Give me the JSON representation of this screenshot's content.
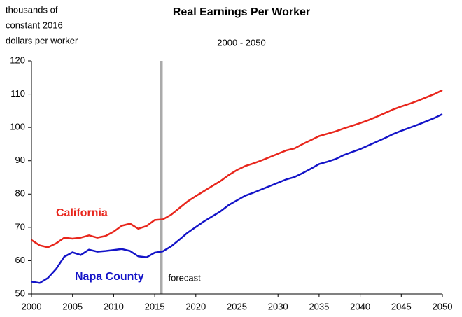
{
  "chart_data": {
    "type": "line",
    "title": "Real Earnings Per Worker",
    "subtitle": "2000 - 2050",
    "ylabel": [
      "thousands of",
      "constant 2016",
      "dollars per worker"
    ],
    "x": [
      2000,
      2001,
      2002,
      2003,
      2004,
      2005,
      2006,
      2007,
      2008,
      2009,
      2010,
      2011,
      2012,
      2013,
      2014,
      2015,
      2016,
      2017,
      2018,
      2019,
      2020,
      2021,
      2022,
      2023,
      2024,
      2025,
      2026,
      2027,
      2028,
      2029,
      2030,
      2031,
      2032,
      2033,
      2034,
      2035,
      2036,
      2037,
      2038,
      2039,
      2040,
      2041,
      2042,
      2043,
      2044,
      2045,
      2046,
      2047,
      2048,
      2049,
      2050
    ],
    "series": [
      {
        "name": "California",
        "color": "#e8261c",
        "values": [
          66.2,
          64.6,
          64.0,
          65.2,
          66.9,
          66.6,
          66.9,
          67.6,
          66.9,
          67.4,
          68.7,
          70.5,
          71.1,
          69.6,
          70.4,
          72.2,
          72.4,
          73.8,
          75.8,
          77.8,
          79.4,
          80.9,
          82.4,
          83.9,
          85.7,
          87.2,
          88.4,
          89.2,
          90.1,
          91.1,
          92.1,
          93.1,
          93.7,
          95.0,
          96.2,
          97.4,
          98.1,
          98.8,
          99.7,
          100.5,
          101.3,
          102.2,
          103.2,
          104.3,
          105.4,
          106.3,
          107.1,
          108.0,
          109.0,
          110.0,
          111.2
        ]
      },
      {
        "name": "Napa County",
        "color": "#1414c8",
        "values": [
          53.7,
          53.3,
          54.8,
          57.5,
          61.2,
          62.5,
          61.7,
          63.3,
          62.7,
          62.9,
          63.2,
          63.5,
          62.9,
          61.3,
          61.0,
          62.4,
          62.8,
          64.3,
          66.3,
          68.4,
          70.1,
          71.8,
          73.3,
          74.8,
          76.7,
          78.1,
          79.5,
          80.4,
          81.4,
          82.4,
          83.4,
          84.4,
          85.1,
          86.3,
          87.6,
          89.0,
          89.7,
          90.5,
          91.7,
          92.6,
          93.5,
          94.6,
          95.7,
          96.8,
          98.0,
          99.0,
          99.9,
          100.8,
          101.8,
          102.8,
          104.0
        ]
      }
    ],
    "annotation": {
      "text": "forecast",
      "x": 2015.8
    },
    "xlim": [
      2000,
      2050
    ],
    "xticks": [
      2000,
      2005,
      2010,
      2015,
      2020,
      2025,
      2030,
      2035,
      2040,
      2045,
      2050
    ],
    "ylim": [
      50,
      120
    ],
    "yticks": [
      50,
      60,
      70,
      80,
      90,
      100,
      110,
      120
    ],
    "grid": false
  }
}
